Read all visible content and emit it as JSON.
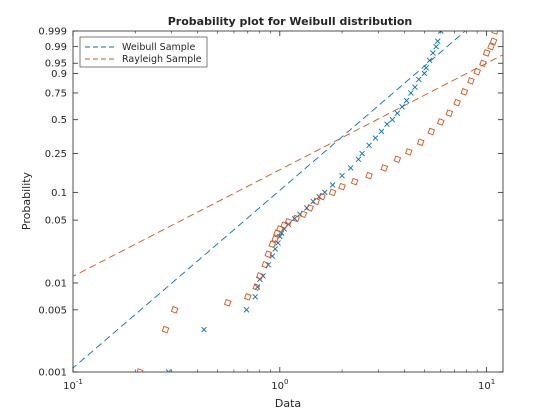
{
  "chart_data": {
    "type": "scatter",
    "title": "Probability plot for Weibull distribution",
    "xlabel": "Data",
    "ylabel": "Probability",
    "xscale": "log",
    "yscale": "weibull-probability",
    "xlim": [
      0.1,
      12
    ],
    "ylim": [
      0.001,
      0.999
    ],
    "xticks": [
      0.1,
      1,
      10
    ],
    "xtick_labels": [
      {
        "base": "10",
        "exp": "-1"
      },
      {
        "base": "10",
        "exp": "0"
      },
      {
        "base": "10",
        "exp": "1"
      }
    ],
    "yticks": [
      0.001,
      0.005,
      0.01,
      0.05,
      0.1,
      0.25,
      0.5,
      0.75,
      0.9,
      0.95,
      0.99,
      0.999
    ],
    "ytick_labels": [
      "0.001",
      "0.005",
      "0.01",
      "0.05",
      "0.1",
      "0.25",
      "0.5",
      "0.75",
      "0.9",
      "0.95",
      "0.99",
      "0.999"
    ],
    "grid": false,
    "legend": {
      "placement": "top-left",
      "entries": [
        "Weibull Sample",
        "Rayleigh Sample"
      ]
    },
    "series": [
      {
        "name": "Weibull Sample",
        "color": "#0072BD",
        "marker": "x",
        "fit_line": {
          "style": "dashed",
          "scale": 3.0,
          "shape": 2.0
        },
        "points": [
          [
            0.29,
            0.001
          ],
          [
            0.43,
            0.003
          ],
          [
            0.69,
            0.005
          ],
          [
            0.76,
            0.007
          ],
          [
            0.78,
            0.009
          ],
          [
            0.8,
            0.011
          ],
          [
            0.83,
            0.012
          ],
          [
            0.88,
            0.016
          ],
          [
            0.92,
            0.02
          ],
          [
            0.95,
            0.024
          ],
          [
            0.98,
            0.028
          ],
          [
            1.0,
            0.033
          ],
          [
            1.02,
            0.036
          ],
          [
            1.05,
            0.04
          ],
          [
            1.1,
            0.045
          ],
          [
            1.18,
            0.052
          ],
          [
            1.25,
            0.058
          ],
          [
            1.35,
            0.068
          ],
          [
            1.45,
            0.08
          ],
          [
            1.55,
            0.09
          ],
          [
            1.65,
            0.1
          ],
          [
            1.8,
            0.12
          ],
          [
            2.0,
            0.15
          ],
          [
            2.2,
            0.18
          ],
          [
            2.4,
            0.22
          ],
          [
            2.5,
            0.25
          ],
          [
            2.7,
            0.3
          ],
          [
            2.9,
            0.35
          ],
          [
            3.1,
            0.4
          ],
          [
            3.3,
            0.46
          ],
          [
            3.5,
            0.5
          ],
          [
            3.7,
            0.56
          ],
          [
            3.9,
            0.62
          ],
          [
            4.1,
            0.68
          ],
          [
            4.3,
            0.75
          ],
          [
            4.5,
            0.8
          ],
          [
            4.7,
            0.86
          ],
          [
            5.0,
            0.9
          ],
          [
            5.1,
            0.93
          ],
          [
            5.3,
            0.96
          ],
          [
            5.5,
            0.98
          ],
          [
            5.7,
            0.99
          ],
          [
            5.8,
            0.995
          ],
          [
            6.0,
            0.999
          ]
        ]
      },
      {
        "name": "Rayleigh Sample",
        "color": "#D95319",
        "marker": "square",
        "fit_line": {
          "style": "dashed",
          "scale": 4.0,
          "shape": 1.2
        },
        "points": [
          [
            0.21,
            0.001
          ],
          [
            0.28,
            0.003
          ],
          [
            0.31,
            0.005
          ],
          [
            0.56,
            0.006
          ],
          [
            0.7,
            0.007
          ],
          [
            0.77,
            0.009
          ],
          [
            0.8,
            0.012
          ],
          [
            0.85,
            0.016
          ],
          [
            0.88,
            0.021
          ],
          [
            0.92,
            0.027
          ],
          [
            0.95,
            0.031
          ],
          [
            0.97,
            0.036
          ],
          [
            1.0,
            0.04
          ],
          [
            1.05,
            0.044
          ],
          [
            1.1,
            0.048
          ],
          [
            1.2,
            0.052
          ],
          [
            1.3,
            0.058
          ],
          [
            1.4,
            0.068
          ],
          [
            1.5,
            0.08
          ],
          [
            1.6,
            0.09
          ],
          [
            1.8,
            0.1
          ],
          [
            2.0,
            0.115
          ],
          [
            2.3,
            0.13
          ],
          [
            2.7,
            0.15
          ],
          [
            3.2,
            0.18
          ],
          [
            3.7,
            0.22
          ],
          [
            4.2,
            0.26
          ],
          [
            4.8,
            0.32
          ],
          [
            5.4,
            0.4
          ],
          [
            6.0,
            0.48
          ],
          [
            6.6,
            0.56
          ],
          [
            7.2,
            0.66
          ],
          [
            7.8,
            0.76
          ],
          [
            8.4,
            0.85
          ],
          [
            9.0,
            0.91
          ],
          [
            9.6,
            0.95
          ],
          [
            10.0,
            0.98
          ],
          [
            10.5,
            0.99
          ],
          [
            10.8,
            0.995
          ],
          [
            11.0,
            0.999
          ]
        ]
      }
    ]
  }
}
